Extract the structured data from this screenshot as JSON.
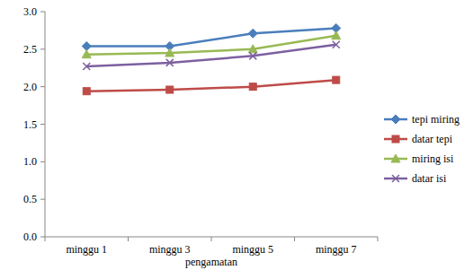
{
  "chart_data": {
    "type": "line",
    "x_label": "pengamatan",
    "categories": [
      "minggu 1",
      "minggu 3",
      "minggu 5",
      "minggu 7"
    ],
    "series": [
      {
        "name": "tepi miring",
        "color": "#4a7ebb",
        "marker": "diamond",
        "values": [
          2.54,
          2.54,
          2.71,
          2.78
        ]
      },
      {
        "name": "datar tepi",
        "color": "#be4b48",
        "marker": "square",
        "values": [
          1.94,
          1.96,
          2.0,
          2.09
        ]
      },
      {
        "name": "miring isi",
        "color": "#98b954",
        "marker": "triangle",
        "values": [
          2.43,
          2.45,
          2.5,
          2.68
        ]
      },
      {
        "name": "datar isi",
        "color": "#7d60a0",
        "marker": "x",
        "values": [
          2.27,
          2.32,
          2.41,
          2.56
        ]
      }
    ],
    "ylim": [
      0,
      3
    ],
    "yticks": [
      {
        "value": 0,
        "label": "0.0"
      },
      {
        "value": 0.5,
        "label": "0.5"
      },
      {
        "value": 1,
        "label": "1.0"
      },
      {
        "value": 1.5,
        "label": "1.5"
      },
      {
        "value": 2,
        "label": "2.0"
      },
      {
        "value": 2.5,
        "label": "2.5"
      },
      {
        "value": 3,
        "label": "3.0"
      }
    ],
    "grid": false,
    "legend": "right"
  }
}
